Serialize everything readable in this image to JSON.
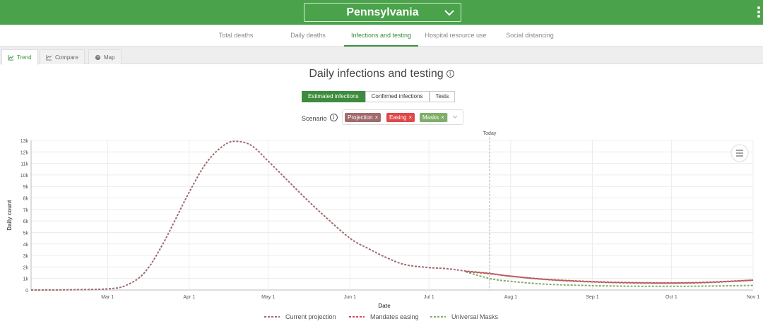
{
  "header": {
    "state": "Pennsylvania"
  },
  "nav": {
    "tabs": [
      "Total deaths",
      "Daily deaths",
      "Infections and testing",
      "Hospital resource use",
      "Social distancing"
    ],
    "active_index": 2
  },
  "subtabs": [
    {
      "label": "Trend",
      "icon": "trend-icon"
    },
    {
      "label": "Compare",
      "icon": "compare-icon"
    },
    {
      "label": "Map",
      "icon": "globe-icon"
    }
  ],
  "page_title": "Daily infections and testing",
  "metric_toggles": [
    "Estimated infections",
    "Confirmed infections",
    "Tests"
  ],
  "scenario": {
    "label": "Scenario",
    "chips": [
      {
        "label": "Projection",
        "color": "#a06a6e"
      },
      {
        "label": "Easing",
        "color": "#e04848"
      },
      {
        "label": "Masks",
        "color": "#7fae6a"
      }
    ]
  },
  "chart_data": {
    "type": "line",
    "today_label": "Today",
    "today_date": "2020-07-24",
    "xlabel": "Date",
    "ylabel": "Daily count",
    "x_ticks": [
      "Mar 1",
      "Apr 1",
      "May 1",
      "Jun 1",
      "Jul 1",
      "Aug 1",
      "Sep 1",
      "Oct 1",
      "Nov 1"
    ],
    "x_tick_dates": [
      "2020-03-01",
      "2020-04-01",
      "2020-05-01",
      "2020-06-01",
      "2020-07-01",
      "2020-08-01",
      "2020-09-01",
      "2020-10-01",
      "2020-11-01"
    ],
    "xlim": [
      "2020-02-01",
      "2020-11-01"
    ],
    "y_ticks": [
      "0",
      "1k",
      "2k",
      "3k",
      "4k",
      "5k",
      "6k",
      "7k",
      "8k",
      "9k",
      "10k",
      "11k",
      "12k",
      "13k"
    ],
    "ylim": [
      0,
      13000
    ],
    "grid": true,
    "legend_position": "bottom",
    "series": [
      {
        "name": "Current projection",
        "color": "#a06a6e",
        "points": [
          [
            "2020-02-01",
            0
          ],
          [
            "2020-02-15",
            20
          ],
          [
            "2020-03-01",
            100
          ],
          [
            "2020-03-08",
            400
          ],
          [
            "2020-03-15",
            1500
          ],
          [
            "2020-03-22",
            4000
          ],
          [
            "2020-04-01",
            8500
          ],
          [
            "2020-04-08",
            11200
          ],
          [
            "2020-04-15",
            12700
          ],
          [
            "2020-04-20",
            12900
          ],
          [
            "2020-04-25",
            12500
          ],
          [
            "2020-05-01",
            11200
          ],
          [
            "2020-05-08",
            9600
          ],
          [
            "2020-05-15",
            8000
          ],
          [
            "2020-05-22",
            6500
          ],
          [
            "2020-06-01",
            4500
          ],
          [
            "2020-06-08",
            3600
          ],
          [
            "2020-06-15",
            2800
          ],
          [
            "2020-06-22",
            2200
          ],
          [
            "2020-07-01",
            1950
          ],
          [
            "2020-07-08",
            1850
          ],
          [
            "2020-07-15",
            1650
          ],
          [
            "2020-07-24",
            1450
          ],
          [
            "2020-08-01",
            1200
          ],
          [
            "2020-08-15",
            900
          ],
          [
            "2020-09-01",
            700
          ],
          [
            "2020-09-15",
            620
          ],
          [
            "2020-10-01",
            600
          ],
          [
            "2020-10-15",
            650
          ],
          [
            "2020-11-01",
            850
          ]
        ]
      },
      {
        "name": "Mandates easing",
        "color": "#d94848",
        "points": [
          [
            "2020-07-15",
            1600
          ],
          [
            "2020-07-24",
            1420
          ],
          [
            "2020-08-01",
            1200
          ],
          [
            "2020-08-15",
            920
          ],
          [
            "2020-09-01",
            730
          ],
          [
            "2020-09-15",
            650
          ],
          [
            "2020-10-01",
            620
          ],
          [
            "2020-10-15",
            680
          ],
          [
            "2020-11-01",
            860
          ]
        ]
      },
      {
        "name": "Universal Masks",
        "color": "#7fae6a",
        "points": [
          [
            "2020-07-15",
            1580
          ],
          [
            "2020-07-24",
            1000
          ],
          [
            "2020-08-01",
            750
          ],
          [
            "2020-08-15",
            500
          ],
          [
            "2020-09-01",
            380
          ],
          [
            "2020-09-15",
            330
          ],
          [
            "2020-10-01",
            320
          ],
          [
            "2020-10-15",
            340
          ],
          [
            "2020-11-01",
            400
          ]
        ]
      }
    ]
  }
}
